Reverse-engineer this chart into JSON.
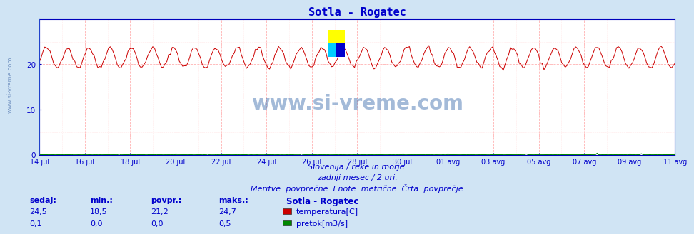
{
  "title": "Sotla - Rogatec",
  "title_color": "#0000cc",
  "bg_color": "#d0e4f4",
  "plot_bg_color": "#ffffff",
  "grid_color_major": "#ffaaaa",
  "grid_color_minor": "#ffe0e0",
  "temp_color": "#cc0000",
  "flow_color": "#008800",
  "axis_color": "#0000bb",
  "text_color": "#0000cc",
  "ylim": [
    0,
    30
  ],
  "yticks": [
    0,
    10,
    20
  ],
  "x_labels": [
    "14 jul",
    "16 jul",
    "18 jul",
    "20 jul",
    "22 jul",
    "24 jul",
    "26 jul",
    "28 jul",
    "30 jul",
    "01 avg",
    "03 avg",
    "05 avg",
    "07 avg",
    "09 avg",
    "11 avg"
  ],
  "subtitle1": "Slovenija / reke in morje.",
  "subtitle2": "zadnji mesec / 2 uri.",
  "subtitle3": "Meritve: povprečne  Enote: metrične  Črta: povprečje",
  "legend_title": "Sotla - Rogatec",
  "legend_items": [
    "temperatura[C]",
    "pretok[m3/s]"
  ],
  "legend_colors": [
    "#cc0000",
    "#008800"
  ],
  "table_headers": [
    "sedaj:",
    "min.:",
    "povpr.:",
    "maks.:"
  ],
  "table_row1": [
    "24,5",
    "18,5",
    "21,2",
    "24,7"
  ],
  "table_row2": [
    "0,1",
    "0,0",
    "0,0",
    "0,5"
  ],
  "watermark": "www.si-vreme.com",
  "watermark_color": "#3366aa",
  "n_points": 360
}
